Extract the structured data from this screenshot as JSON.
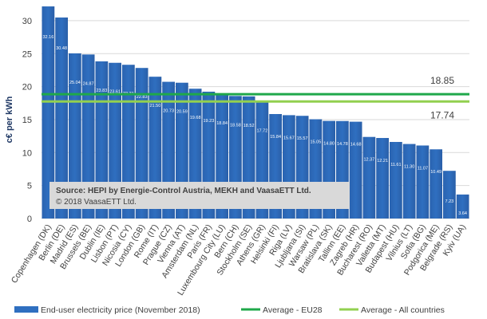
{
  "chart_data": {
    "type": "bar",
    "title": "",
    "ylabel": "c€ per kWh",
    "xlabel": "",
    "ylim": [
      0,
      32
    ],
    "yticks": [
      0,
      5,
      10,
      15,
      20,
      25,
      30
    ],
    "grid": true,
    "categories": [
      "Copenhagen (DK)",
      "Berlin (DE)",
      "Madrid (ES)",
      "Brussels (BE)",
      "Dublin (IE)",
      "Lisbon (PT)",
      "Nicosia (CY)",
      "London (GB)",
      "Rome (IT)",
      "Prague (CZ)",
      "Vienna (AT)",
      "Amsterdam (NL)",
      "Paris (FR)",
      "Luxembourg City (LU)",
      "Bern (CH)",
      "Stockholm (SE)",
      "Athens (GR)",
      "Helsinki (FI)",
      "Riga (LV)",
      "Ljubljana (SI)",
      "Warsaw (PL)",
      "Bratislava (SK)",
      "Tallinn (EE)",
      "Zagreb (HR)",
      "Bucharest (RO)",
      "Valletta (MT)",
      "Budapest (HU)",
      "Vilnius (LT)",
      "Sofia (BG)",
      "Podgorica (ME)",
      "Belgrade (RS)",
      "Kyiv (UA)"
    ],
    "values": [
      32.16,
      30.48,
      25.04,
      24.87,
      23.83,
      23.61,
      23.31,
      22.83,
      21.5,
      20.73,
      20.59,
      19.68,
      19.23,
      18.84,
      18.58,
      18.52,
      17.72,
      15.84,
      15.67,
      15.57,
      15.05,
      14.8,
      14.78,
      14.68,
      12.37,
      12.21,
      11.61,
      11.3,
      11.07,
      10.49,
      7.23,
      3.64
    ],
    "value_labels": [
      "32.16",
      "30.48",
      "25.04",
      "24.87",
      "23.83",
      "23.61",
      "23.31",
      "22.83",
      "21.50",
      "20.73",
      "20.59",
      "19.68",
      "19.23",
      "18.84",
      "18.58",
      "18.52",
      "17.72",
      "15.84",
      "15.67",
      "15.57",
      "15.05",
      "14.80",
      "14.78",
      "14.68",
      "12.37",
      "12.21",
      "11.61",
      "11.30",
      "11.07",
      "10.49",
      "7.23",
      "3.64"
    ],
    "reference_lines": [
      {
        "name": "Average - EU28",
        "value": 18.85,
        "label": "18.85",
        "color": "#1fa84a"
      },
      {
        "name": "Average - All countries",
        "value": 17.74,
        "label": "17.74",
        "color": "#92d050"
      }
    ],
    "series_name": "End-user electricity price (November 2018)",
    "bar_color": "#2f6fc0",
    "legend_position": "bottom",
    "annotation": {
      "line1": "Source: HEPI by Energie-Control Austria, MEKH and VaasaETT Ltd.",
      "line2": "© 2018 VaasaETT Ltd."
    }
  }
}
